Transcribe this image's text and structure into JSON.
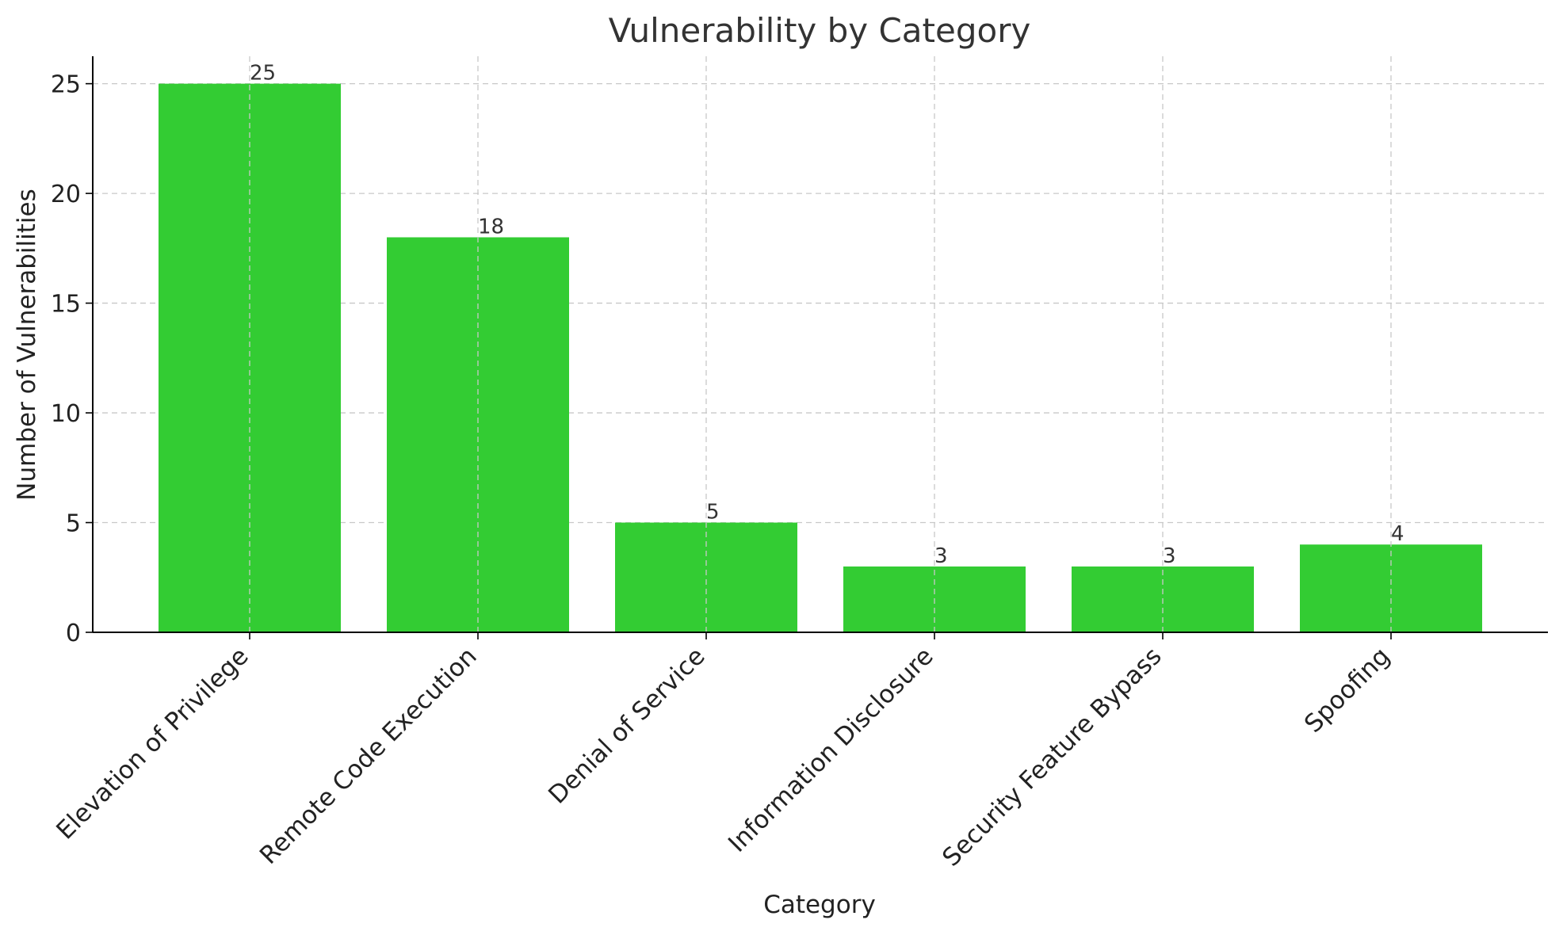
{
  "chart_data": {
    "type": "bar",
    "title": "Vulnerability by Category",
    "xlabel": "Category",
    "ylabel": "Number of Vulnerabilities",
    "categories": [
      "Elevation of Privilege",
      "Remote Code Execution",
      "Denial of Service",
      "Information Disclosure",
      "Security Feature Bypass",
      "Spoofing"
    ],
    "values": [
      25,
      18,
      5,
      3,
      3,
      4
    ],
    "data_labels": [
      "25",
      "18",
      "5",
      "3",
      "3",
      "4"
    ],
    "yticks": [
      0,
      5,
      10,
      15,
      20,
      25
    ],
    "ytick_labels": [
      "0",
      "5",
      "10",
      "15",
      "20",
      "25"
    ],
    "ylim": [
      0,
      26.25
    ],
    "grid": true,
    "bar_color": "#33cc33"
  }
}
